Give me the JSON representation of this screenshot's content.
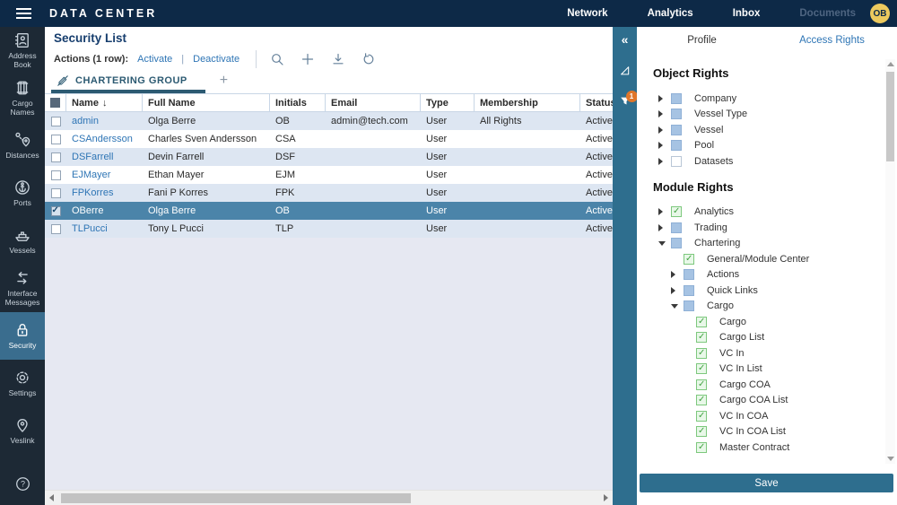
{
  "topbar": {
    "title": "DATA CENTER",
    "nav": [
      {
        "label": "Network",
        "enabled": true
      },
      {
        "label": "Analytics",
        "enabled": true
      },
      {
        "label": "Inbox",
        "enabled": true
      },
      {
        "label": "Documents",
        "enabled": false
      }
    ],
    "avatar": "OB"
  },
  "sidebar": {
    "items": [
      {
        "label": "Address Book",
        "icon": "address-book-icon",
        "active": false
      },
      {
        "label": "Cargo Names",
        "icon": "cargo-names-icon",
        "active": false
      },
      {
        "label": "Distances",
        "icon": "distances-icon",
        "active": false
      },
      {
        "label": "Ports",
        "icon": "ports-icon",
        "active": false
      },
      {
        "label": "Vessels",
        "icon": "vessels-icon",
        "active": false
      },
      {
        "label": "Interface Messages",
        "icon": "interface-messages-icon",
        "active": false
      },
      {
        "label": "Security",
        "icon": "security-icon",
        "active": true
      },
      {
        "label": "Settings",
        "icon": "settings-icon",
        "active": false
      },
      {
        "label": "Veslink",
        "icon": "veslink-icon",
        "active": false
      }
    ]
  },
  "main": {
    "title": "Security List",
    "actions": {
      "label": "Actions (1 row):",
      "separator": "|",
      "links": [
        "Activate",
        "Deactivate"
      ]
    },
    "tab": {
      "label": "CHARTERING GROUP",
      "add_label": "+"
    },
    "table": {
      "columns": [
        "",
        "Name",
        "Full Name",
        "Initials",
        "Email",
        "Type",
        "Membership",
        "Status"
      ],
      "sort_column": "Name",
      "sort_arrow": "↓",
      "rows": [
        {
          "checked": false,
          "selected": false,
          "name": "admin",
          "full_name": "Olga Berre",
          "initials": "OB",
          "email": "admin@tech.com",
          "type": "User",
          "membership": "All Rights",
          "status": "Active"
        },
        {
          "checked": false,
          "selected": false,
          "name": "CSAndersson",
          "full_name": "Charles Sven Andersson",
          "initials": "CSA",
          "email": "",
          "type": "User",
          "membership": "",
          "status": "Active"
        },
        {
          "checked": false,
          "selected": false,
          "name": "DSFarrell",
          "full_name": "Devin Farrell",
          "initials": "DSF",
          "email": "",
          "type": "User",
          "membership": "",
          "status": "Active"
        },
        {
          "checked": false,
          "selected": false,
          "name": "EJMayer",
          "full_name": "Ethan Mayer",
          "initials": "EJM",
          "email": "",
          "type": "User",
          "membership": "",
          "status": "Active"
        },
        {
          "checked": false,
          "selected": false,
          "name": "FPKorres",
          "full_name": "Fani P Korres",
          "initials": "FPK",
          "email": "",
          "type": "User",
          "membership": "",
          "status": "Active"
        },
        {
          "checked": true,
          "selected": true,
          "name": "OBerre",
          "full_name": "Olga Berre",
          "initials": "OB",
          "email": "",
          "type": "User",
          "membership": "",
          "status": "Active"
        },
        {
          "checked": false,
          "selected": false,
          "name": "TLPucci",
          "full_name": "Tony L Pucci",
          "initials": "TLP",
          "email": "",
          "type": "User",
          "membership": "",
          "status": "Active"
        }
      ]
    }
  },
  "strip": {
    "collapse_glyph": "«",
    "filter_badge": "1"
  },
  "panel": {
    "tabs": [
      {
        "label": "Profile",
        "active": false
      },
      {
        "label": "Access Rights",
        "active": true
      }
    ],
    "sections": [
      {
        "heading": "Object Rights",
        "items": [
          {
            "label": "Company",
            "state": "partial",
            "expander": "collapsed",
            "level": 0
          },
          {
            "label": "Vessel Type",
            "state": "partial",
            "expander": "collapsed",
            "level": 0
          },
          {
            "label": "Vessel",
            "state": "partial",
            "expander": "collapsed",
            "level": 0
          },
          {
            "label": "Pool",
            "state": "partial",
            "expander": "collapsed",
            "level": 0
          },
          {
            "label": "Datasets",
            "state": "unchecked",
            "expander": "collapsed",
            "level": 0
          }
        ]
      },
      {
        "heading": "Module Rights",
        "items": [
          {
            "label": "Analytics",
            "state": "checked",
            "expander": "collapsed",
            "level": 0
          },
          {
            "label": "Trading",
            "state": "partial",
            "expander": "collapsed",
            "level": 0
          },
          {
            "label": "Chartering",
            "state": "partial",
            "expander": "expanded",
            "level": 0
          },
          {
            "label": "General/Module Center",
            "state": "checked",
            "expander": "none",
            "level": 1
          },
          {
            "label": "Actions",
            "state": "partial",
            "expander": "collapsed",
            "level": 1
          },
          {
            "label": "Quick Links",
            "state": "partial",
            "expander": "collapsed",
            "level": 1
          },
          {
            "label": "Cargo",
            "state": "partial",
            "expander": "expanded",
            "level": 1
          },
          {
            "label": "Cargo",
            "state": "checked",
            "expander": "none",
            "level": 2
          },
          {
            "label": "Cargo List",
            "state": "checked",
            "expander": "none",
            "level": 2
          },
          {
            "label": "VC In",
            "state": "checked",
            "expander": "none",
            "level": 2
          },
          {
            "label": "VC In List",
            "state": "checked",
            "expander": "none",
            "level": 2
          },
          {
            "label": "Cargo COA",
            "state": "checked",
            "expander": "none",
            "level": 2
          },
          {
            "label": "Cargo COA List",
            "state": "checked",
            "expander": "none",
            "level": 2
          },
          {
            "label": "VC In COA",
            "state": "checked",
            "expander": "none",
            "level": 2
          },
          {
            "label": "VC In COA List",
            "state": "checked",
            "expander": "none",
            "level": 2
          },
          {
            "label": "Master Contract",
            "state": "checked",
            "expander": "none",
            "level": 2
          }
        ]
      }
    ],
    "save_label": "Save"
  },
  "colors": {
    "topbar": "#0d2947",
    "sidebar": "#1d2935",
    "accent_teal": "#2e6e8e",
    "sidebar_active": "#3a6d8e",
    "selected_row": "#4b84a9",
    "row_alt": "#dde6f2",
    "link_blue": "#2e75b5",
    "avatar_gold": "#ecc95e",
    "filter_badge_orange": "#e0762a",
    "check_green": "#44a344",
    "partial_blue": "#a6c3e3"
  }
}
